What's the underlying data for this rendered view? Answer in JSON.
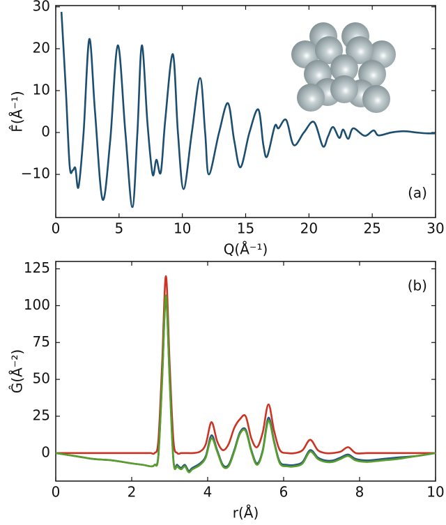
{
  "chart_data": [
    {
      "type": "line",
      "xlabel": "Q(Å⁻¹)",
      "ylabel": "F̂(Å⁻¹)",
      "annotation": "(a)",
      "x": [
        0.45,
        0.8,
        1.1,
        1.35,
        1.55,
        1.8,
        2.2,
        2.65,
        3.1,
        3.7,
        4.3,
        4.9,
        5.5,
        6.05,
        6.45,
        6.8,
        7.25,
        7.65,
        7.95,
        8.3,
        8.65,
        9.25,
        9.65,
        10.1,
        10.75,
        11.4,
        11.8,
        12.1,
        12.9,
        13.6,
        14.1,
        14.6,
        15.3,
        16.0,
        16.4,
        16.7,
        17.3,
        17.6,
        18.2,
        18.8,
        19.6,
        20.4,
        21.1,
        21.5,
        21.9,
        22.4,
        22.7,
        23.1,
        23.5,
        24.4,
        25.1,
        25.5,
        26.5,
        27.5,
        28.5,
        29.3,
        30
      ],
      "series": [
        {
          "color": "#1c4e70",
          "values": [
            28.8,
            10,
            -8,
            -9,
            -8.5,
            -13,
            0,
            22.3,
            5,
            -16,
            -2,
            20.8,
            0,
            -17.8,
            0,
            20.8,
            2,
            -10,
            -6.5,
            -9.5,
            3,
            18.7,
            0,
            -13.5,
            0,
            13,
            0,
            -10,
            0,
            7,
            -2,
            -8.3,
            0,
            5.5,
            -3,
            -5.7,
            1.5,
            1,
            3,
            -3,
            0,
            2.5,
            -3.3,
            -1,
            1.3,
            -1.3,
            0.7,
            -1.5,
            1,
            -0.8,
            0.5,
            -0.7,
            0,
            0.3,
            0,
            -0.2,
            -0.2
          ]
        }
      ],
      "xlim": [
        0,
        30
      ],
      "xticks": [
        0,
        5,
        10,
        15,
        20,
        25,
        30
      ],
      "ylim": [
        -20.3,
        30.3
      ],
      "yticks": [
        {
          "value": -10,
          "label": "−10"
        },
        0,
        10,
        20,
        30
      ]
    },
    {
      "type": "line",
      "xlabel": "r(Å)",
      "ylabel": "Ĝ(Å⁻²)",
      "annotation": "(b)",
      "x": [
        0,
        0.5,
        1,
        1.5,
        2,
        2.3,
        2.5,
        2.6,
        2.7,
        2.8,
        2.9,
        3.0,
        3.1,
        3.2,
        3.3,
        3.4,
        3.5,
        3.6,
        3.8,
        3.95,
        4.1,
        4.25,
        4.4,
        4.55,
        4.7,
        4.85,
        5.0,
        5.15,
        5.3,
        5.45,
        5.6,
        5.75,
        5.9,
        6.1,
        6.3,
        6.5,
        6.7,
        6.9,
        7.1,
        7.3,
        7.5,
        7.7,
        7.9,
        8.2,
        8.6,
        9,
        9.5,
        10
      ],
      "series": [
        {
          "color": "#cc3322",
          "values": [
            0,
            0,
            0,
            0,
            0,
            0,
            0,
            0,
            8,
            60,
            120,
            60,
            8,
            0,
            0,
            0,
            0,
            0,
            1,
            6,
            21,
            8,
            2,
            6,
            17,
            23,
            25,
            10,
            4,
            14,
            33,
            15,
            2,
            0,
            0,
            2,
            9,
            2,
            0,
            0,
            1,
            4,
            0,
            0,
            0,
            0,
            0,
            0
          ]
        },
        {
          "color": "#2a5a80",
          "values": [
            0,
            -2,
            -4,
            -5,
            -7,
            -8,
            -9,
            -8,
            -2,
            50,
            105,
            50,
            -5,
            -8,
            -10,
            -8,
            -12,
            -10,
            -7,
            -2,
            12,
            2,
            -8,
            -8,
            2,
            14,
            16,
            2,
            -7,
            2,
            24,
            8,
            -6,
            -8,
            -8,
            -6,
            2,
            -3,
            -5,
            -5,
            -3,
            -1,
            -4,
            -5,
            -4,
            -3,
            -2,
            0
          ]
        },
        {
          "color": "#5a9e2a",
          "values": [
            0,
            -2,
            -4,
            -5,
            -7,
            -8,
            -9,
            -8,
            -3,
            48,
            107,
            48,
            -6,
            -9,
            -11,
            -9,
            -13,
            -11,
            -8,
            -3,
            10,
            1,
            -9,
            -9,
            1,
            13,
            15,
            1,
            -8,
            1,
            22,
            7,
            -7,
            -9,
            -9,
            -7,
            1,
            -4,
            -6,
            -6,
            -4,
            -2,
            -5,
            -6,
            -5,
            -4,
            -2,
            0
          ]
        }
      ],
      "xlim": [
        0,
        10
      ],
      "xticks": [
        0,
        2,
        4,
        6,
        8,
        10
      ],
      "ylim": [
        -19,
        130
      ],
      "yticks": [
        0,
        25,
        50,
        75,
        100,
        125
      ]
    }
  ]
}
